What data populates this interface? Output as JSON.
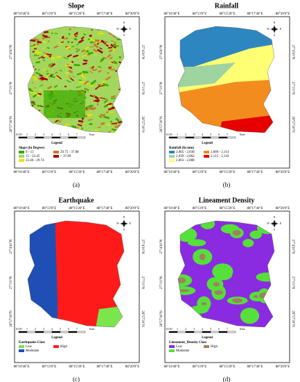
{
  "panels": [
    {
      "title": "Slope",
      "label": "(a)",
      "legend_title": "Slope (In Degree)",
      "items": [
        {
          "label": "0 - 15",
          "color": "#38a800"
        },
        {
          "label": "15 - 22.45",
          "color": "#a3d65c"
        },
        {
          "label": "22.46 - 29.74",
          "color": "#e6e600"
        },
        {
          "label": "29.75 - 37.88",
          "color": "#c8782e"
        },
        {
          "label": "> 37.89",
          "color": "#a80000"
        }
      ]
    },
    {
      "title": "Rainfall",
      "label": "(b)",
      "legend_title": "Rainfall (In mm)",
      "items": [
        {
          "label": "2,005 - 2,038",
          "color": "#2e86c1"
        },
        {
          "label": "2,039 - 2,062",
          "color": "#9fd3a0"
        },
        {
          "label": "2,063 - 2,088",
          "color": "#ffff73"
        },
        {
          "label": "2,089 - 2,114",
          "color": "#f28c1e"
        },
        {
          "label": "2,115 - 2,143",
          "color": "#e60000"
        }
      ]
    },
    {
      "title": "Earthquake",
      "label": "(c)",
      "legend_title": "Earthquake Class",
      "items": [
        {
          "label": "Low",
          "color": "#7ae64c"
        },
        {
          "label": "Moderate",
          "color": "#1f4fb4"
        },
        {
          "label": "High",
          "color": "#ff1a1a"
        }
      ]
    },
    {
      "title": "Lineament Density",
      "label": "(d)",
      "legend_title": "Lineament_Density Class",
      "items": [
        {
          "label": "Low",
          "color": "#8a2be2"
        },
        {
          "label": "Moderate",
          "color": "#55e03a"
        },
        {
          "label": "High",
          "color": "#a08060"
        }
      ]
    }
  ],
  "lon_labels": [
    "88°10'40\"E",
    "88°13'0\"E",
    "88°15'20\"E",
    "88°17'40\"E",
    "88°20'0\"E"
  ],
  "lat_labels": [
    "27°4'30\"N",
    "27°1'0\"N",
    "26°57'30\"N"
  ],
  "scale_labels": [
    "10.50",
    "1",
    "2",
    "3",
    "4",
    "5",
    "6",
    "7",
    "Kms"
  ],
  "legend_heading": "Legend",
  "compass": [
    "N",
    "E",
    "S",
    "W"
  ]
}
